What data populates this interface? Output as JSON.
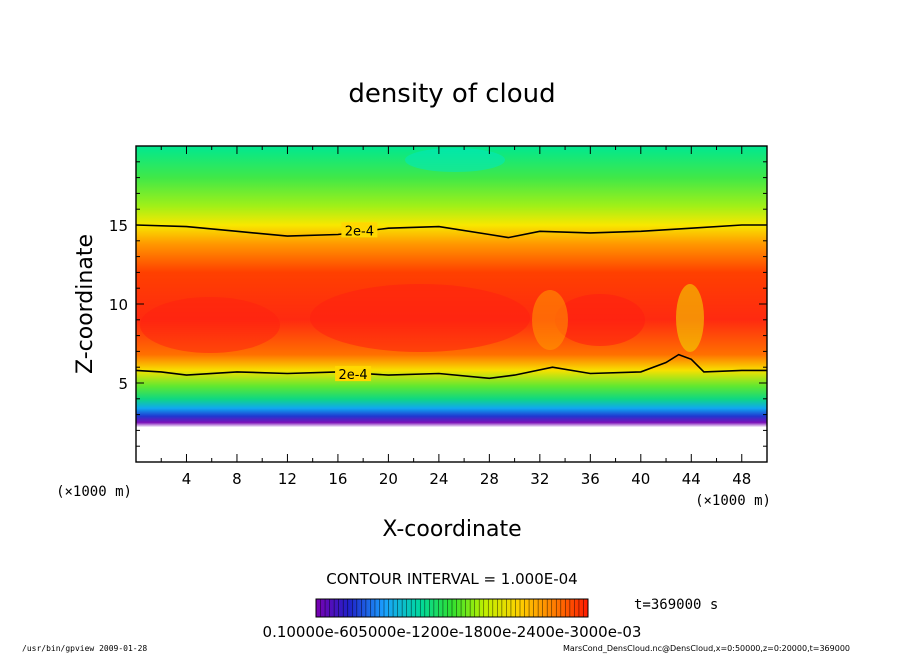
{
  "chart_data": {
    "type": "heatmap",
    "title": "density of cloud",
    "xlabel": "X-coordinate",
    "ylabel": "Z-coordinate",
    "x_unit": "(×1000 m)",
    "y_unit": "(×1000 m)",
    "xlim": [
      0,
      50
    ],
    "ylim": [
      0,
      20
    ],
    "x_ticks": [
      4,
      8,
      12,
      16,
      20,
      24,
      28,
      32,
      36,
      40,
      44,
      48
    ],
    "y_ticks": [
      5,
      10,
      15
    ],
    "contour_label": "2e-4",
    "contour_interval_text": "CONTOUR INTERVAL = 1.000E-04",
    "time_text": "t=369000 s",
    "colorbar_text": "0.10000e-605000e-1200e-1800e-2400e-3000e-03",
    "colormap": [
      "#7a00b0",
      "#2020c8",
      "#1aa0ff",
      "#00d8a0",
      "#30e030",
      "#c0f000",
      "#ffd000",
      "#ff7a00",
      "#ff1a00"
    ],
    "upper_contour": [
      [
        0,
        15.0
      ],
      [
        4,
        14.9
      ],
      [
        8,
        14.6
      ],
      [
        12,
        14.3
      ],
      [
        16,
        14.4
      ],
      [
        20,
        14.8
      ],
      [
        24,
        14.9
      ],
      [
        28,
        14.4
      ],
      [
        29.5,
        14.2
      ],
      [
        32,
        14.6
      ],
      [
        36,
        14.5
      ],
      [
        40,
        14.6
      ],
      [
        44,
        14.8
      ],
      [
        48,
        15.0
      ],
      [
        50,
        15.0
      ]
    ],
    "lower_contour": [
      [
        0,
        5.8
      ],
      [
        2,
        5.7
      ],
      [
        4,
        5.5
      ],
      [
        8,
        5.7
      ],
      [
        12,
        5.6
      ],
      [
        16,
        5.7
      ],
      [
        20,
        5.5
      ],
      [
        24,
        5.6
      ],
      [
        28,
        5.3
      ],
      [
        30,
        5.5
      ],
      [
        33,
        6.0
      ],
      [
        36,
        5.6
      ],
      [
        40,
        5.7
      ],
      [
        42,
        6.3
      ],
      [
        43,
        6.8
      ],
      [
        44,
        6.5
      ],
      [
        45,
        5.7
      ],
      [
        48,
        5.8
      ],
      [
        50,
        5.8
      ]
    ]
  },
  "footer": {
    "left": "/usr/bin/gpview   2009-01-28",
    "right": "MarsCond_DensCloud.nc@DensCloud,x=0:50000,z=0:20000,t=369000"
  }
}
